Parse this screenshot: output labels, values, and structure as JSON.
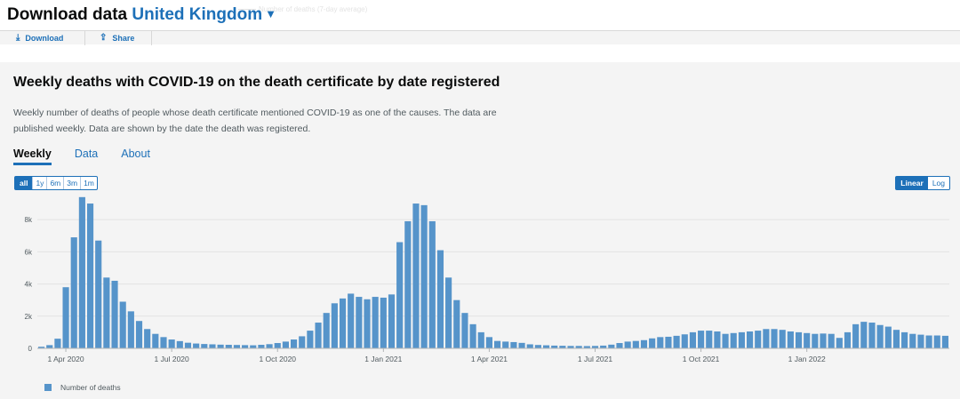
{
  "header": {
    "title": "Download data",
    "region": "United Kingdom",
    "faint_legend": "Number of deaths (7-day average)"
  },
  "toolbar": {
    "download_label": "Download",
    "share_label": "Share"
  },
  "card": {
    "title": "Weekly deaths with COVID-19 on the death certificate by date registered",
    "description": "Weekly number of deaths of people whose death certificate mentioned COVID-19 as one of the causes. The data are published weekly. Data are shown by the date the death was registered.",
    "tabs": [
      {
        "label": "Weekly",
        "active": true
      },
      {
        "label": "Data",
        "active": false
      },
      {
        "label": "About",
        "active": false
      }
    ],
    "ranges": [
      {
        "label": "all",
        "active": true
      },
      {
        "label": "1y",
        "active": false
      },
      {
        "label": "6m",
        "active": false
      },
      {
        "label": "3m",
        "active": false
      },
      {
        "label": "1m",
        "active": false
      }
    ],
    "scales": [
      {
        "label": "Linear",
        "active": true
      },
      {
        "label": "Log",
        "active": false
      }
    ],
    "legend_label": "Number of deaths"
  },
  "colors": {
    "bar": "#5694ca",
    "accent": "#1d70b8"
  },
  "chart_data": {
    "type": "bar",
    "ylabel": "",
    "xlabel": "",
    "ylim": [
      0,
      9500
    ],
    "yticks": [
      {
        "value": 0,
        "label": "0"
      },
      {
        "value": 2000,
        "label": "2k"
      },
      {
        "value": 4000,
        "label": "4k"
      },
      {
        "value": 6000,
        "label": "6k"
      },
      {
        "value": 8000,
        "label": "8k"
      }
    ],
    "xticks": [
      {
        "index": 3,
        "label": "1 Apr 2020"
      },
      {
        "index": 16,
        "label": "1 Jul 2020"
      },
      {
        "index": 29,
        "label": "1 Oct 2020"
      },
      {
        "index": 42,
        "label": "1 Jan 2021"
      },
      {
        "index": 55,
        "label": "1 Apr 2021"
      },
      {
        "index": 68,
        "label": "1 Jul 2021"
      },
      {
        "index": 81,
        "label": "1 Oct 2021"
      },
      {
        "index": 94,
        "label": "1 Jan 2022"
      }
    ],
    "grid": true,
    "legend_position": "bottom-left",
    "series": [
      {
        "name": "Number of deaths",
        "values": [
          100,
          200,
          600,
          3800,
          6900,
          9400,
          9000,
          6700,
          4400,
          4200,
          2900,
          2300,
          1700,
          1200,
          900,
          700,
          550,
          450,
          350,
          300,
          270,
          250,
          230,
          220,
          210,
          200,
          190,
          220,
          260,
          330,
          420,
          550,
          750,
          1100,
          1600,
          2200,
          2800,
          3100,
          3400,
          3200,
          3050,
          3200,
          3150,
          3350,
          6600,
          7900,
          9000,
          8900,
          7900,
          6100,
          4400,
          3000,
          2200,
          1500,
          1000,
          700,
          460,
          420,
          390,
          340,
          250,
          210,
          190,
          170,
          160,
          150,
          150,
          140,
          150,
          170,
          230,
          330,
          420,
          460,
          510,
          620,
          700,
          720,
          780,
          870,
          1000,
          1100,
          1100,
          1050,
          900,
          950,
          1000,
          1050,
          1100,
          1200,
          1200,
          1150,
          1050,
          1000,
          950,
          900,
          920,
          900,
          650,
          1000,
          1500,
          1650,
          1600,
          1450,
          1350,
          1150,
          1000,
          900,
          850,
          800,
          800,
          780
        ]
      }
    ]
  }
}
